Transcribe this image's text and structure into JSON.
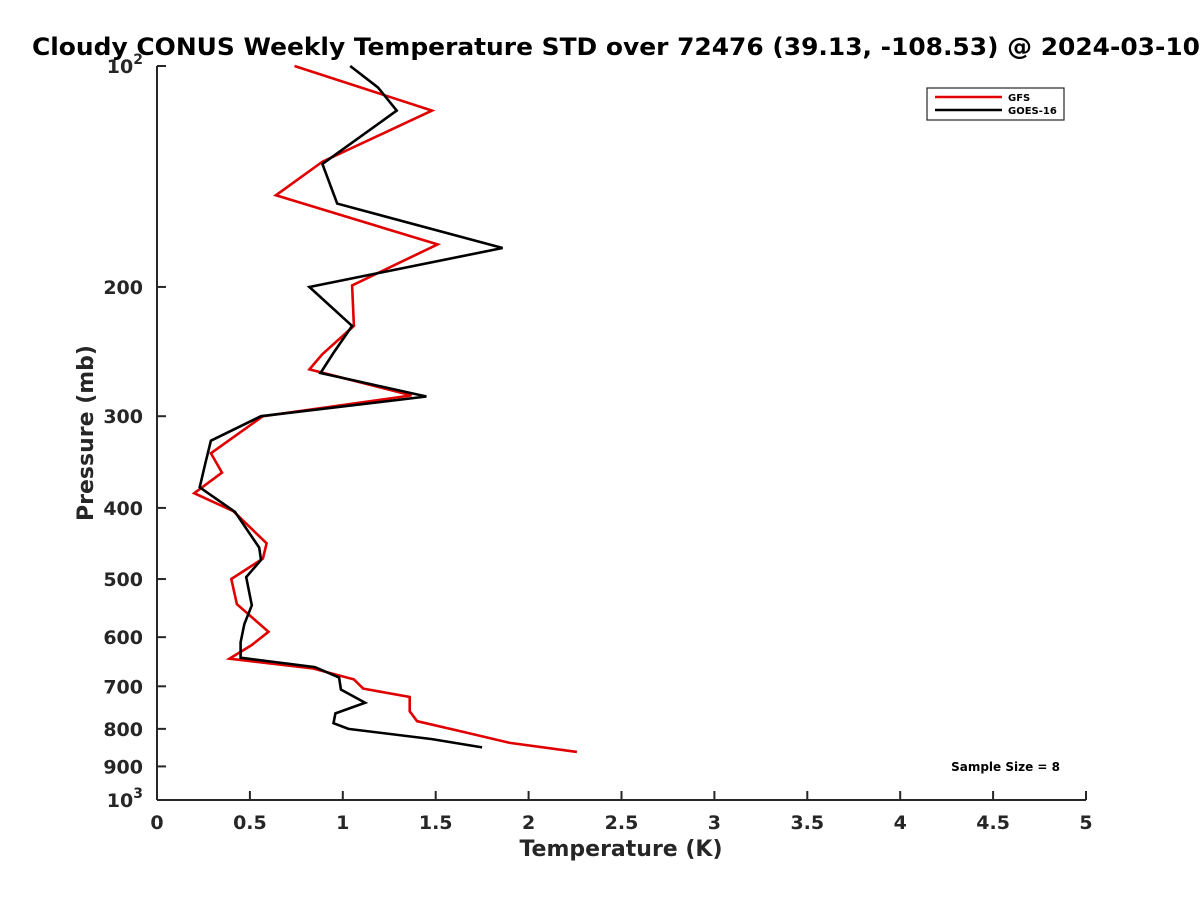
{
  "chart_data": {
    "type": "line",
    "title": "Cloudy CONUS Weekly Temperature STD over 72476 (39.13, -108.53) @ 2024-03-10",
    "xlabel": "Temperature (K)",
    "ylabel": "Pressure (mb)",
    "xlim": [
      0,
      5
    ],
    "ylim": [
      100,
      1000
    ],
    "y_scale": "log",
    "y_reversed": true,
    "grid": false,
    "legend_position": "top-right",
    "x_ticks": [
      0,
      0.5,
      1,
      1.5,
      2,
      2.5,
      3,
      3.5,
      4,
      4.5,
      5
    ],
    "x_tick_labels": [
      "0",
      "0.5",
      "1",
      "1.5",
      "2",
      "2.5",
      "3",
      "3.5",
      "4",
      "4.5",
      "5"
    ],
    "y_ticks": [
      100,
      200,
      300,
      400,
      500,
      600,
      700,
      800,
      900,
      1000
    ],
    "y_tick_labels": [
      {
        "base": "10",
        "exp": "2"
      },
      {
        "base": "200",
        "exp": ""
      },
      {
        "base": "300",
        "exp": ""
      },
      {
        "base": "400",
        "exp": ""
      },
      {
        "base": "500",
        "exp": ""
      },
      {
        "base": "600",
        "exp": ""
      },
      {
        "base": "700",
        "exp": ""
      },
      {
        "base": "800",
        "exp": ""
      },
      {
        "base": "900",
        "exp": ""
      },
      {
        "base": "10",
        "exp": "3"
      }
    ],
    "series": [
      {
        "name": "GFS",
        "color": "#e00000",
        "points": [
          [
            0.74,
            100
          ],
          [
            1.48,
            115
          ],
          [
            0.89,
            135
          ],
          [
            0.64,
            150
          ],
          [
            1.51,
            175
          ],
          [
            1.05,
            199
          ],
          [
            1.06,
            226
          ],
          [
            0.89,
            247
          ],
          [
            0.82,
            259
          ],
          [
            1.37,
            281
          ],
          [
            0.57,
            300
          ],
          [
            0.29,
            337
          ],
          [
            0.35,
            358
          ],
          [
            0.2,
            382
          ],
          [
            0.41,
            404
          ],
          [
            0.59,
            447
          ],
          [
            0.57,
            469
          ],
          [
            0.4,
            500
          ],
          [
            0.43,
            541
          ],
          [
            0.6,
            590
          ],
          [
            0.51,
            615
          ],
          [
            0.39,
            642
          ],
          [
            0.84,
            662
          ],
          [
            1.06,
            685
          ],
          [
            1.11,
            705
          ],
          [
            1.36,
            724
          ],
          [
            1.36,
            757
          ],
          [
            1.4,
            781
          ],
          [
            1.66,
            809
          ],
          [
            1.9,
            836
          ],
          [
            2.26,
            860
          ]
        ]
      },
      {
        "name": "GOES-16",
        "color": "#000000",
        "points": [
          [
            1.04,
            100
          ],
          [
            1.19,
            107
          ],
          [
            1.29,
            115
          ],
          [
            0.89,
            136
          ],
          [
            0.97,
            154
          ],
          [
            1.86,
            177
          ],
          [
            0.82,
            200
          ],
          [
            1.05,
            226
          ],
          [
            0.95,
            246
          ],
          [
            0.88,
            262
          ],
          [
            1.45,
            282
          ],
          [
            0.56,
            300
          ],
          [
            0.29,
            324
          ],
          [
            0.26,
            348
          ],
          [
            0.23,
            375
          ],
          [
            0.42,
            405
          ],
          [
            0.55,
            453
          ],
          [
            0.56,
            471
          ],
          [
            0.48,
            497
          ],
          [
            0.51,
            543
          ],
          [
            0.47,
            576
          ],
          [
            0.45,
            610
          ],
          [
            0.45,
            640
          ],
          [
            0.85,
            659
          ],
          [
            0.98,
            681
          ],
          [
            0.99,
            707
          ],
          [
            1.12,
            737
          ],
          [
            0.96,
            762
          ],
          [
            0.95,
            786
          ],
          [
            1.03,
            800
          ],
          [
            1.48,
            826
          ],
          [
            1.75,
            848
          ]
        ]
      }
    ],
    "annotations": [
      {
        "text": "Sample Size = 8"
      }
    ]
  }
}
